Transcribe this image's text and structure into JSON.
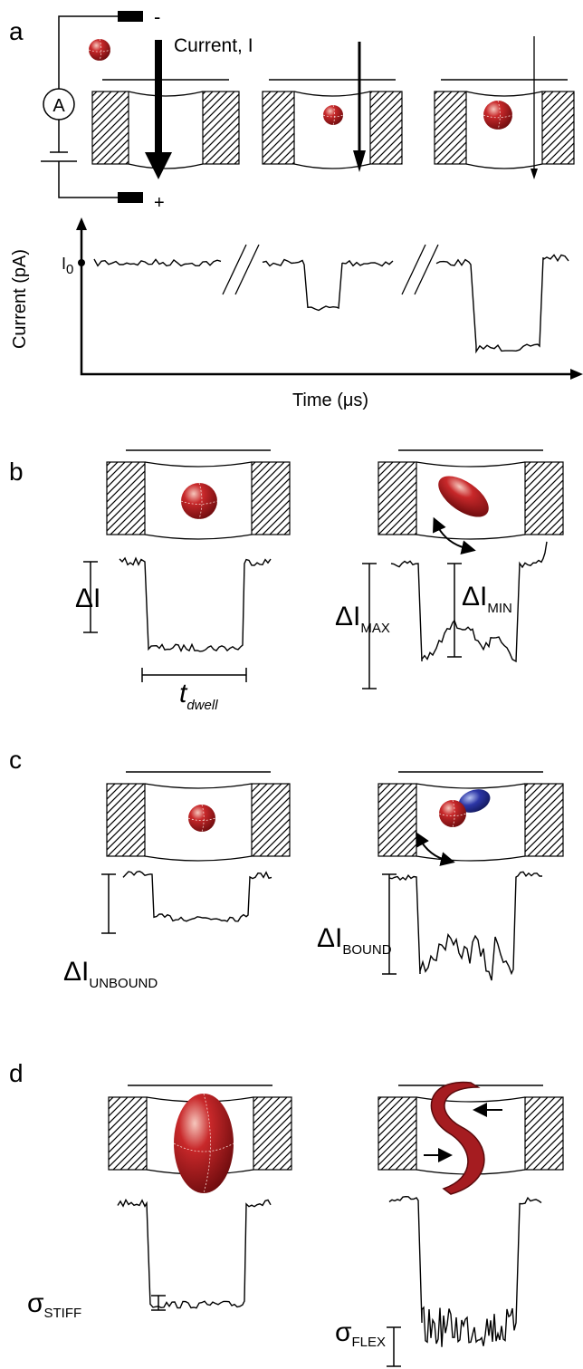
{
  "panel_a": {
    "label": "a",
    "minus": "-",
    "plus": "+",
    "current": "Current, I",
    "ammeter": "A",
    "baseline": {
      "base": "I",
      "sub": "0"
    },
    "y_axis": "Current (pA)",
    "x_axis": "Time (μs)"
  },
  "panel_b": {
    "label": "b",
    "delta": "ΔI",
    "dwell": {
      "base": "t",
      "sub": "dwell"
    },
    "delta_max": {
      "base": "ΔI",
      "sub": "MAX"
    },
    "delta_min": {
      "base": "ΔI",
      "sub": "MIN"
    }
  },
  "panel_c": {
    "label": "c",
    "unbound": {
      "base": "ΔI",
      "sub": "UNBOUND"
    },
    "bound": {
      "base": "ΔI",
      "sub": "BOUND"
    }
  },
  "panel_d": {
    "label": "d",
    "stiff": {
      "base": "σ",
      "sub": "STIFF"
    },
    "flex": {
      "base": "σ",
      "sub": "FLEX"
    }
  }
}
